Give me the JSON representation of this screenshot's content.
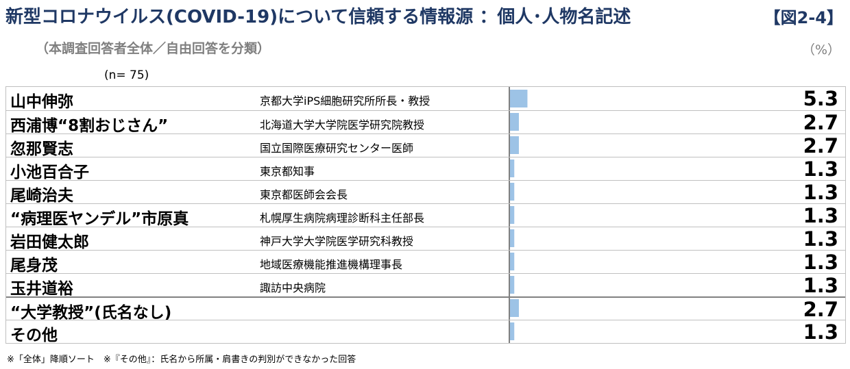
{
  "header": {
    "title": "新型コロナウイルス(COVID-19)について信頼する情報源 ：個人･人物名記述",
    "figure_label": "【図2-4】",
    "subtitle": "（本調査回答者全体／自由回答を分類）",
    "unit": "（%）",
    "n_label": "(n=  75)"
  },
  "footnote": "※「全体」降順ソート　※『その他』：氏名から所属・肩書きの判別ができなかった回答",
  "colors": {
    "bar": "#9dc3e6",
    "title": "#1f3864",
    "subtle": "#7f7f7f"
  },
  "chart_data": {
    "type": "bar",
    "orientation": "horizontal",
    "categories": [
      "山中伸弥",
      "西浦博“8割おじさん”",
      "忽那賢志",
      "小池百合子",
      "尾崎治夫",
      "“病理医ヤンデル”市原真",
      "岩田健太郎",
      "尾身茂",
      "玉井道裕",
      "“大学教授”(氏名なし)",
      "その他"
    ],
    "affiliations": [
      "京都大学iPS細胞研究所所長・教授",
      "北海道大学大学院医学研究院教授",
      "国立国際医療研究センター医師",
      "東京都知事",
      "東京都医師会会長",
      "札幌厚生病院病理診断科主任部長",
      "神戸大学大学院医学研究科教授",
      "地域医療機能推進機構理事長",
      "諏訪中央病院",
      "",
      ""
    ],
    "values": [
      5.3,
      2.7,
      2.7,
      1.3,
      1.3,
      1.3,
      1.3,
      1.3,
      1.3,
      2.7,
      1.3
    ],
    "value_labels": [
      "5.3",
      "2.7",
      "2.7",
      "1.3",
      "1.3",
      "1.3",
      "1.3",
      "1.3",
      "1.3",
      "2.7",
      "1.3"
    ],
    "xlim": [
      0,
      100
    ]
  }
}
